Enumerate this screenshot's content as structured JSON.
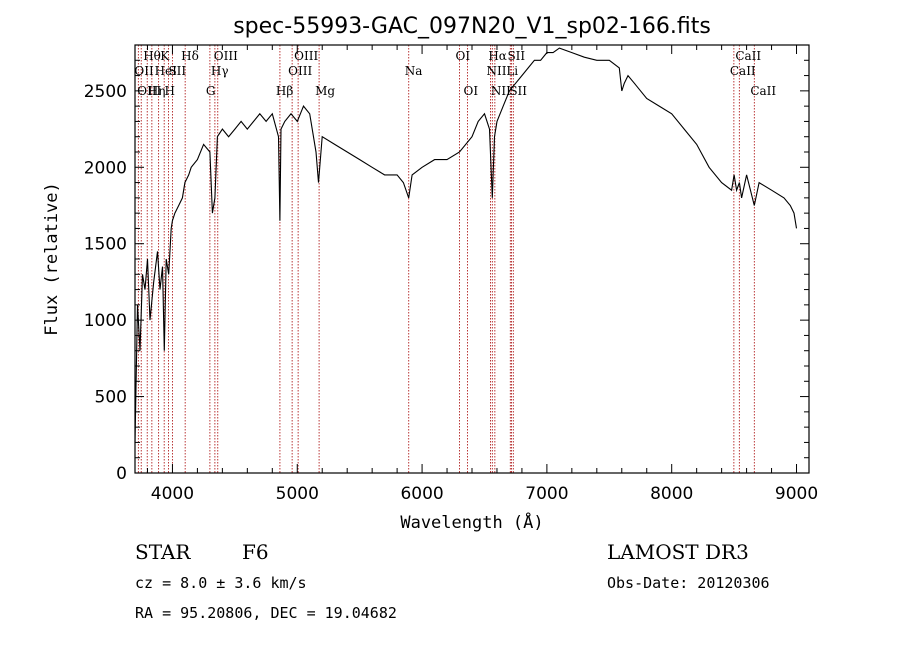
{
  "colors": {
    "axis": "#000000",
    "spectrum": "#000000",
    "lines": "#b22222",
    "background": "#ffffff"
  },
  "chart_data": {
    "type": "line",
    "title": "spec-55993-GAC_097N20_V1_sp02-166.fits",
    "xlabel": "Wavelength (Å)",
    "ylabel": "Flux (relative)",
    "xlim": [
      3700,
      9100
    ],
    "ylim": [
      0,
      2800
    ],
    "xticks": [
      4000,
      5000,
      6000,
      7000,
      8000,
      9000
    ],
    "yticks": [
      0,
      500,
      1000,
      1500,
      2000,
      2500
    ],
    "grid": false,
    "series": [
      {
        "x": [
          3700,
          3720,
          3740,
          3760,
          3780,
          3800,
          3820,
          3850,
          3880,
          3900,
          3920,
          3935,
          3950,
          3970,
          3990,
          4000,
          4020,
          4050,
          4080,
          4100,
          4130,
          4150,
          4200,
          4250,
          4300,
          4320,
          4340,
          4360,
          4400,
          4450,
          4500,
          4550,
          4600,
          4650,
          4700,
          4750,
          4800,
          4850,
          4861,
          4870,
          4900,
          4950,
          5000,
          5050,
          5100,
          5150,
          5170,
          5200,
          5300,
          5400,
          5500,
          5600,
          5700,
          5800,
          5850,
          5893,
          5920,
          6000,
          6100,
          6200,
          6300,
          6400,
          6450,
          6500,
          6540,
          6563,
          6580,
          6600,
          6650,
          6700,
          6750,
          6800,
          6850,
          6900,
          6950,
          7000,
          7050,
          7100,
          7200,
          7300,
          7400,
          7500,
          7580,
          7600,
          7620,
          7650,
          7700,
          7800,
          7900,
          8000,
          8100,
          8200,
          8300,
          8400,
          8480,
          8500,
          8520,
          8542,
          8560,
          8600,
          8662,
          8700,
          8800,
          8900,
          8950,
          8980,
          9000
        ],
        "y": [
          200,
          1100,
          800,
          1300,
          1200,
          1400,
          1000,
          1250,
          1450,
          1200,
          1350,
          800,
          1400,
          1300,
          1600,
          1650,
          1700,
          1750,
          1800,
          1900,
          1950,
          2000,
          2050,
          2150,
          2100,
          1700,
          1800,
          2200,
          2250,
          2200,
          2250,
          2300,
          2250,
          2300,
          2350,
          2300,
          2350,
          2200,
          1650,
          2250,
          2300,
          2350,
          2300,
          2400,
          2350,
          2100,
          1900,
          2200,
          2150,
          2100,
          2050,
          2000,
          1950,
          1950,
          1900,
          1800,
          1950,
          2000,
          2050,
          2050,
          2100,
          2200,
          2300,
          2350,
          2250,
          1800,
          2200,
          2300,
          2400,
          2500,
          2550,
          2600,
          2650,
          2700,
          2700,
          2750,
          2750,
          2780,
          2750,
          2720,
          2700,
          2700,
          2650,
          2500,
          2550,
          2600,
          2550,
          2450,
          2400,
          2350,
          2250,
          2150,
          2000,
          1900,
          1850,
          1950,
          1850,
          1900,
          1800,
          1950,
          1750,
          1900,
          1850,
          1800,
          1750,
          1700,
          1600
        ]
      }
    ],
    "lines": [
      {
        "wave": 3727,
        "label": "OII",
        "row": 2
      },
      {
        "wave": 3750,
        "label": "OIII",
        "row": 3
      },
      {
        "wave": 3798,
        "label": "Hθ",
        "row": 1
      },
      {
        "wave": 3835,
        "label": "Hη",
        "row": 3
      },
      {
        "wave": 3889,
        "label": "HeI",
        "row": 2
      },
      {
        "wave": 3934,
        "label": "K",
        "row": 1
      },
      {
        "wave": 3968,
        "label": "H",
        "row": 3
      },
      {
        "wave": 4000,
        "label": "SII",
        "row": 2
      },
      {
        "wave": 4102,
        "label": "Hδ",
        "row": 1
      },
      {
        "wave": 4300,
        "label": "G",
        "row": 3
      },
      {
        "wave": 4340,
        "label": "Hγ",
        "row": 2
      },
      {
        "wave": 4363,
        "label": "OIII",
        "row": 1
      },
      {
        "wave": 4861,
        "label": "Hβ",
        "row": 3
      },
      {
        "wave": 4959,
        "label": "OIII",
        "row": 2
      },
      {
        "wave": 5007,
        "label": "OIII",
        "row": 1
      },
      {
        "wave": 5175,
        "label": "Mg",
        "row": 3
      },
      {
        "wave": 5893,
        "label": "Na",
        "row": 2
      },
      {
        "wave": 6300,
        "label": "OI",
        "row": 1
      },
      {
        "wave": 6364,
        "label": "OI",
        "row": 3
      },
      {
        "wave": 6548,
        "label": "NII",
        "row": 2
      },
      {
        "wave": 6563,
        "label": "Hα",
        "row": 1
      },
      {
        "wave": 6583,
        "label": "NII",
        "row": 3
      },
      {
        "wave": 6707,
        "label": "Li",
        "row": 2
      },
      {
        "wave": 6716,
        "label": "SII",
        "row": 1
      },
      {
        "wave": 6731,
        "label": "SII",
        "row": 3
      },
      {
        "wave": 8498,
        "label": "CaII",
        "row": 2
      },
      {
        "wave": 8542,
        "label": "CaII",
        "row": 1
      },
      {
        "wave": 8662,
        "label": "CaII",
        "row": 3
      }
    ]
  },
  "info": {
    "class_label": "STAR",
    "subclass": "F6",
    "cz": "cz = 8.0 ± 3.6 km/s",
    "coords": "RA =  95.20806, DEC =  19.04682",
    "survey": "LAMOST DR3",
    "obs_date": "Obs-Date: 20120306"
  }
}
